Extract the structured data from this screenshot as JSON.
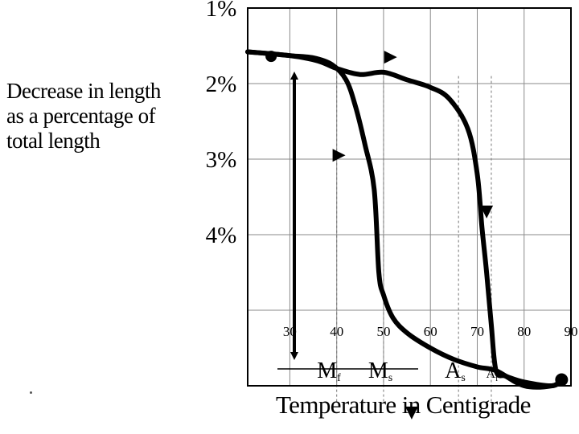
{
  "chart_data": {
    "type": "line",
    "title": "",
    "ylabel_lines": [
      "Decrease in length",
      "as a percentage of",
      "total length"
    ],
    "xlabel": "Temperature in Centigrade",
    "xlim": [
      21,
      90
    ],
    "ylim": [
      1,
      6
    ],
    "y_ticks": [
      {
        "value": 1,
        "label": "1%"
      },
      {
        "value": 2,
        "label": "2%"
      },
      {
        "value": 3,
        "label": "3%"
      },
      {
        "value": 4,
        "label": "4%"
      }
    ],
    "x_ticks": [
      {
        "value": 30,
        "label": "30"
      },
      {
        "value": 40,
        "label": "40"
      },
      {
        "value": 50,
        "label": "50"
      },
      {
        "value": 60,
        "label": "60"
      },
      {
        "value": 70,
        "label": "70"
      },
      {
        "value": 80,
        "label": "80"
      },
      {
        "value": 90,
        "label": "90"
      }
    ],
    "grid": true,
    "series": [
      {
        "direction": "cooling",
        "points": [
          [
            21,
            1.58
          ],
          [
            25,
            1.6
          ],
          [
            30,
            1.63
          ],
          [
            35,
            1.66
          ],
          [
            39,
            1.75
          ],
          [
            42,
            1.95
          ],
          [
            44,
            2.3
          ],
          [
            46,
            2.8
          ],
          [
            48,
            3.4
          ],
          [
            49,
            4.5
          ],
          [
            50,
            4.8
          ],
          [
            52,
            5.1
          ],
          [
            55,
            5.3
          ],
          [
            60,
            5.5
          ],
          [
            65,
            5.65
          ],
          [
            70,
            5.75
          ],
          [
            74,
            5.8
          ],
          [
            80,
            6.0
          ],
          [
            86,
            6.0
          ],
          [
            88,
            5.92
          ]
        ]
      },
      {
        "direction": "heating",
        "points": [
          [
            21,
            1.58
          ],
          [
            30,
            1.63
          ],
          [
            36,
            1.7
          ],
          [
            40,
            1.8
          ],
          [
            45,
            1.88
          ],
          [
            50,
            1.85
          ],
          [
            55,
            1.95
          ],
          [
            60,
            2.05
          ],
          [
            64,
            2.2
          ],
          [
            68,
            2.6
          ],
          [
            70,
            3.2
          ],
          [
            71,
            3.9
          ],
          [
            72,
            4.5
          ],
          [
            73,
            5.2
          ],
          [
            74,
            5.8
          ],
          [
            76,
            5.87
          ],
          [
            80,
            5.95
          ],
          [
            86,
            6.0
          ],
          [
            88,
            5.92
          ]
        ]
      }
    ],
    "annotations": [
      {
        "label": "M",
        "subscript": "f",
        "x": 40
      },
      {
        "label": "M",
        "subscript": "s",
        "x": 50
      },
      {
        "label": "A",
        "subscript": "s",
        "x": 66
      },
      {
        "label": "A",
        "subscript": "f",
        "x": 73
      }
    ]
  }
}
